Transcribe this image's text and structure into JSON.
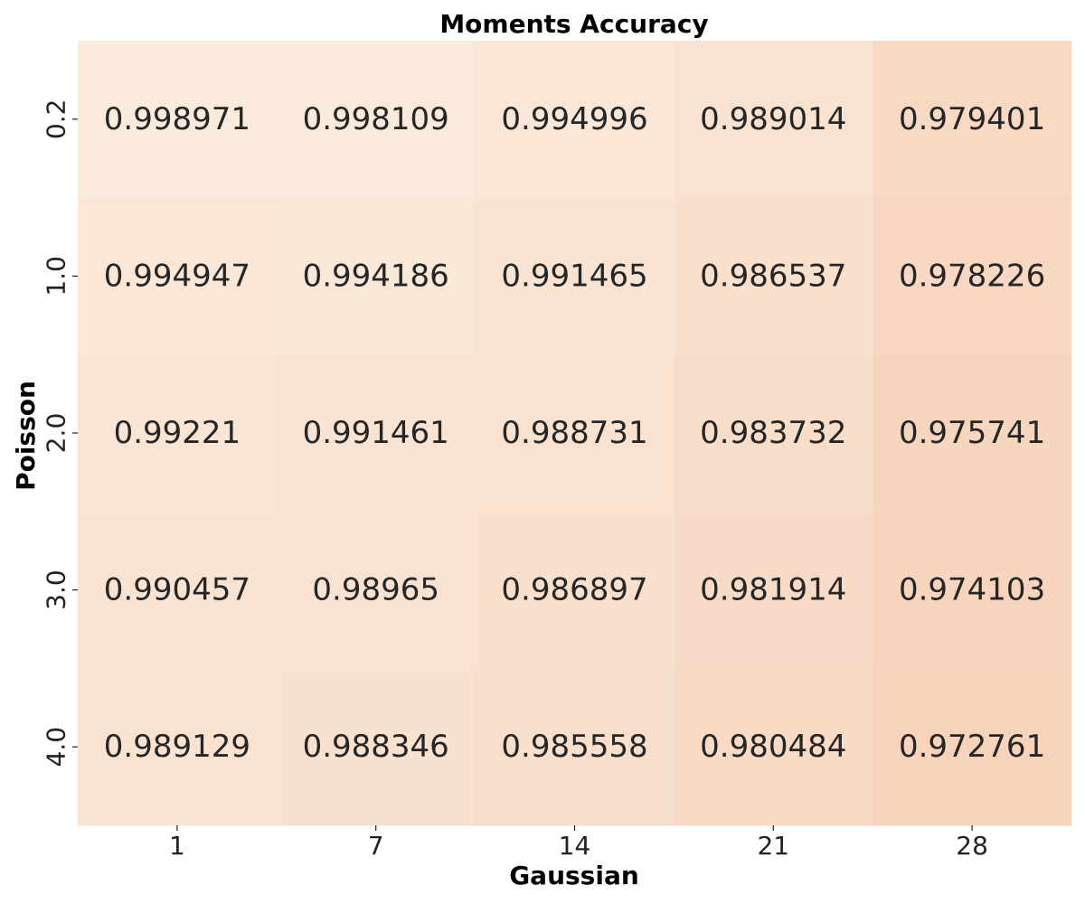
{
  "chart_data": {
    "type": "heatmap",
    "title": "Moments Accuracy",
    "xlabel": "Gaussian",
    "ylabel": "Poisson",
    "x_categories": [
      "1",
      "7",
      "14",
      "21",
      "28"
    ],
    "y_categories": [
      "0.2",
      "1.0",
      "2.0",
      "3.0",
      "4.0"
    ],
    "values": [
      [
        0.998971,
        0.998109,
        0.994996,
        0.989014,
        0.979401
      ],
      [
        0.994947,
        0.994186,
        0.991465,
        0.986537,
        0.978226
      ],
      [
        0.99221,
        0.991461,
        0.988731,
        0.983732,
        0.975741
      ],
      [
        0.990457,
        0.98965,
        0.986897,
        0.981914,
        0.974103
      ],
      [
        0.989129,
        0.988346,
        0.985558,
        0.980484,
        0.972761
      ]
    ],
    "cell_labels": [
      [
        "0.998971",
        "0.998109",
        "0.994996",
        "0.989014",
        "0.979401"
      ],
      [
        "0.994947",
        "0.994186",
        "0.991465",
        "0.986537",
        "0.978226"
      ],
      [
        "0.99221",
        "0.991461",
        "0.988731",
        "0.983732",
        "0.975741"
      ],
      [
        "0.990457",
        "0.98965",
        "0.986897",
        "0.981914",
        "0.974103"
      ],
      [
        "0.989129",
        "0.988346",
        "0.985558",
        "0.980484",
        "0.972761"
      ]
    ],
    "colorscale": {
      "low_color": "#f7d3bb",
      "high_color": "#faebdd"
    },
    "grid": false,
    "colorbar": false
  }
}
